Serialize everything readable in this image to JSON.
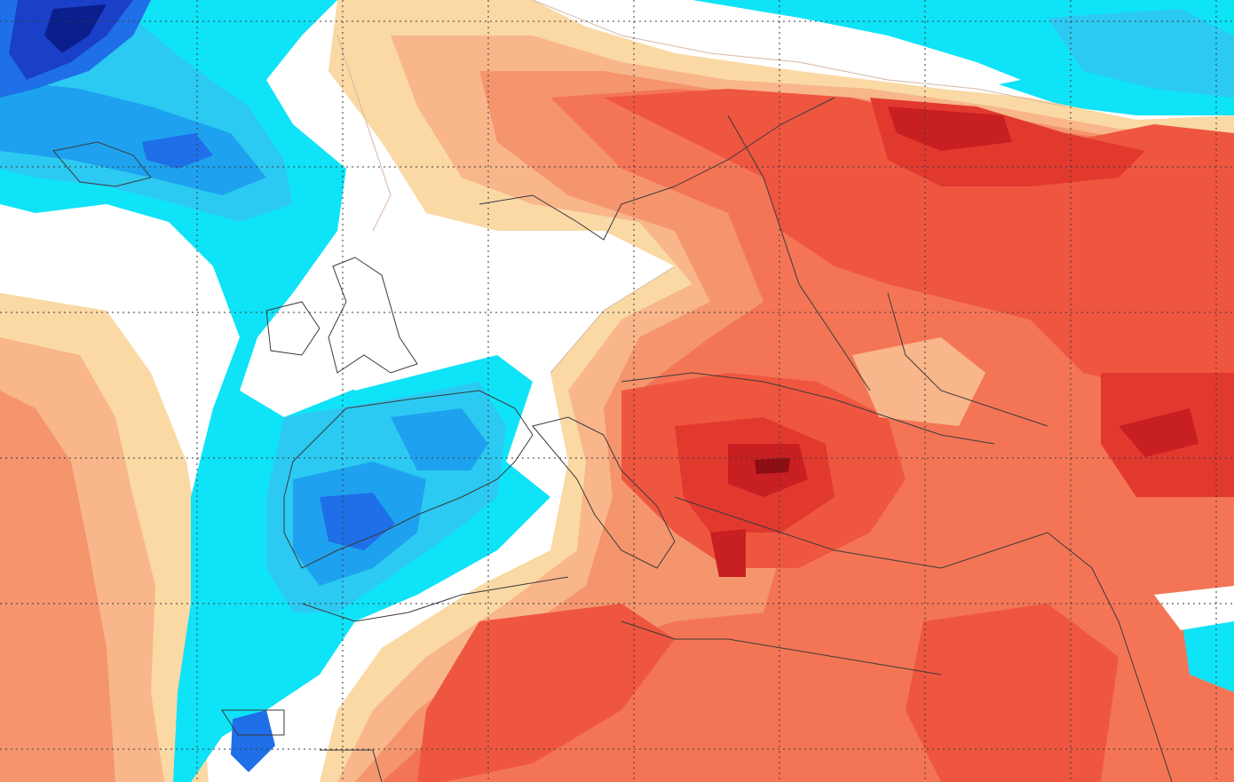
{
  "map": {
    "kind": "temperature-anomaly-shading",
    "projection": "lat-lon",
    "graticule": "dotted",
    "colors": {
      "background": "#ffffff",
      "deep_navy": "#0a1f8c",
      "navy": "#1a3fc8",
      "blue": "#1f6fe8",
      "mid_blue": "#1ea2ef",
      "light_blue": "#2ccaf2",
      "cyan": "#0fe3f7",
      "neutral": "#ffffff",
      "sand": "#fad9a5",
      "peach": "#f8b68a",
      "salmon": "#f4956d",
      "orange_red": "#f47556",
      "red": "#ef5640",
      "deep_red": "#e2392f",
      "dark_red": "#c71f22",
      "darkest_red": "#8c0d14",
      "contour": "#d7b7a3",
      "border": "#3a3a3a",
      "graticule": "#3a3a3a"
    }
  }
}
